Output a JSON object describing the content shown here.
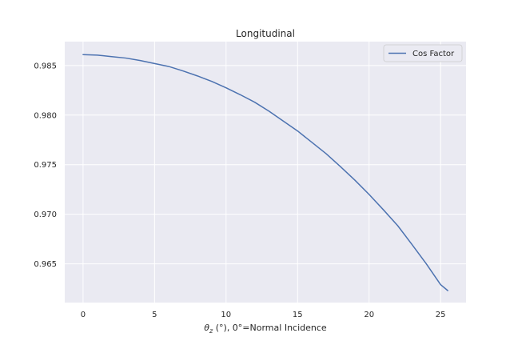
{
  "chart_data": {
    "type": "line",
    "title": "Longitudinal",
    "xlabel_symbol": "θ",
    "xlabel_sub": "z",
    "xlabel_rest": " (°), 0°=Normal Incidence",
    "ylabel": "",
    "xlim": [
      -1.28,
      26.78
    ],
    "ylim": [
      0.96109,
      0.98741
    ],
    "x_ticks": [
      0,
      5,
      10,
      15,
      20,
      25
    ],
    "y_ticks": [
      0.965,
      0.97,
      0.975,
      0.98,
      0.985
    ],
    "x_tick_labels": [
      "0",
      "5",
      "10",
      "15",
      "20",
      "25"
    ],
    "y_tick_labels": [
      "0.965",
      "0.970",
      "0.975",
      "0.980",
      "0.985"
    ],
    "grid": true,
    "legend_position": "top-right",
    "series": [
      {
        "name": "Cos Factor",
        "color": "#4c72b0",
        "x": [
          0,
          1,
          2,
          3,
          4,
          5,
          6,
          7,
          8,
          9,
          10,
          11,
          12,
          13,
          14,
          15,
          16,
          17,
          18,
          19,
          20,
          21,
          22,
          23,
          24,
          25,
          25.5
        ],
        "y": [
          0.9861,
          0.98605,
          0.9859,
          0.98575,
          0.9855,
          0.9852,
          0.9849,
          0.98445,
          0.98395,
          0.9834,
          0.98275,
          0.98205,
          0.9813,
          0.9804,
          0.9794,
          0.9784,
          0.97725,
          0.9761,
          0.9748,
          0.97345,
          0.972,
          0.97045,
          0.96885,
          0.96695,
          0.965,
          0.9629,
          0.9623
        ]
      }
    ]
  },
  "style": {
    "plot_bg": "#eaeaf2",
    "grid_color": "#ffffff",
    "text_color": "#262626",
    "legend_border": "#cccccc"
  }
}
